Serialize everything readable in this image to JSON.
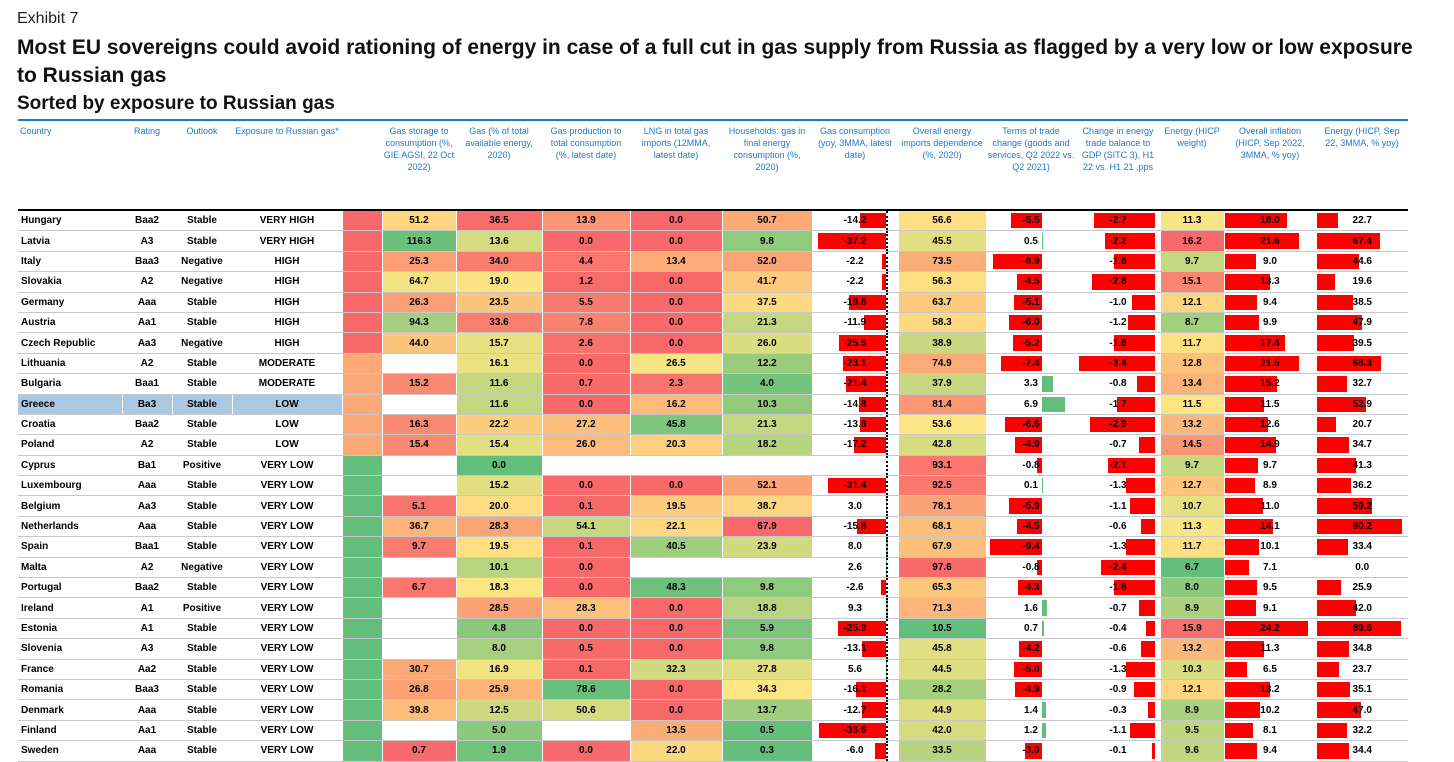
{
  "header": {
    "exhibit": "Exhibit 7",
    "title": "Most EU sovereigns could avoid rationing of energy in case of a full cut in gas supply from Russia as flagged by a very low or low exposure to Russian gas",
    "subtitle": "Sorted by exposure to Russian gas"
  },
  "columns": [
    "Country",
    "Rating",
    "Outlook",
    "Exposure to Russian gas*",
    "",
    "Gas storage to consumption (%, GIE AGSI, 22 Oct 2022)",
    "Gas (% of total available energy, 2020)",
    "Gas production to total consumption (%, latest date)",
    "LNG in total gas imports (12MMA, latest date)",
    "Households: gas in final energy consumption (%, 2020)",
    "Gas consumption (yoy, 3MMA, latest date)",
    "Overall energy imports dependence (%, 2020)",
    "Terms of trade change (goods and services, Q2 2022 vs. Q2 2021)",
    "Change in energy trade balance to GDP (SITC 3), H1 22 vs. H1 21 ,pps",
    "Energy (HICP weight)",
    "Overall inflation (HICP, Sep 2022, 3MMA, % yoy)",
    "Energy (HICP, Sep 22, 3MMA, % yoy)"
  ],
  "highlighted_country": "Greece",
  "colors": {
    "red": "#f8696b",
    "orange": "#fbaa77",
    "yellow": "#fee683",
    "lightgreen": "#b1d580",
    "green": "#63be7b",
    "bar_red": "#ff0000",
    "bar_green": "#63be7b",
    "header_blue": "#1f78c8"
  },
  "rows": [
    {
      "country": "Hungary",
      "rating": "Baa2",
      "outlook": "Stable",
      "exposure": "VERY HIGH",
      "storage": "51.2",
      "gas_share": "36.5",
      "production": "13.9",
      "lng": "0.0",
      "households": "50.7",
      "consumption": "-14.2",
      "imports_dep": "56.6",
      "tot": "-5.5",
      "energy_tb": "-2.7",
      "hicp_weight": "11.3",
      "inflation": "18.0",
      "energy_infl": "22.7"
    },
    {
      "country": "Latvia",
      "rating": "A3",
      "outlook": "Stable",
      "exposure": "VERY HIGH",
      "storage": "116.3",
      "gas_share": "13.6",
      "production": "0.0",
      "lng": "0.0",
      "households": "9.8",
      "consumption": "-37.2",
      "imports_dep": "45.5",
      "tot": "0.5",
      "energy_tb": "-2.2",
      "hicp_weight": "16.2",
      "inflation": "21.6",
      "energy_infl": "67.4"
    },
    {
      "country": "Italy",
      "rating": "Baa3",
      "outlook": "Negative",
      "exposure": "HIGH",
      "storage": "25.3",
      "gas_share": "34.0",
      "production": "4.4",
      "lng": "13.4",
      "households": "52.0",
      "consumption": "-2.2",
      "imports_dep": "73.5",
      "tot": "-8.9",
      "energy_tb": "-1.8",
      "hicp_weight": "9.7",
      "inflation": "9.0",
      "energy_infl": "44.6"
    },
    {
      "country": "Slovakia",
      "rating": "A2",
      "outlook": "Negative",
      "exposure": "HIGH",
      "storage": "64.7",
      "gas_share": "19.0",
      "production": "1.2",
      "lng": "0.0",
      "households": "41.7",
      "consumption": "-2.2",
      "imports_dep": "56.3",
      "tot": "-4.5",
      "energy_tb": "-2.8",
      "hicp_weight": "15.1",
      "inflation": "13.3",
      "energy_infl": "19.6"
    },
    {
      "country": "Germany",
      "rating": "Aaa",
      "outlook": "Stable",
      "exposure": "HIGH",
      "storage": "26.3",
      "gas_share": "23.5",
      "production": "5.5",
      "lng": "0.0",
      "households": "37.5",
      "consumption": "-19.8",
      "imports_dep": "63.7",
      "tot": "-5.1",
      "energy_tb": "-1.0",
      "hicp_weight": "12.1",
      "inflation": "9.4",
      "energy_infl": "38.5"
    },
    {
      "country": "Austria",
      "rating": "Aa1",
      "outlook": "Stable",
      "exposure": "HIGH",
      "storage": "94.3",
      "gas_share": "33.6",
      "production": "7.8",
      "lng": "0.0",
      "households": "21.3",
      "consumption": "-11.9",
      "imports_dep": "58.3",
      "tot": "-6.0",
      "energy_tb": "-1.2",
      "hicp_weight": "8.7",
      "inflation": "9.9",
      "energy_infl": "47.9"
    },
    {
      "country": "Czech Republic",
      "rating": "Aa3",
      "outlook": "Negative",
      "exposure": "HIGH",
      "storage": "44.0",
      "gas_share": "15.7",
      "production": "2.6",
      "lng": "0.0",
      "households": "26.0",
      "consumption": "-25.5",
      "imports_dep": "38.9",
      "tot": "-5.2",
      "energy_tb": "-1.8",
      "hicp_weight": "11.7",
      "inflation": "17.4",
      "energy_infl": "39.5"
    },
    {
      "country": "Lithuania",
      "rating": "A2",
      "outlook": "Stable",
      "exposure": "MODERATE",
      "storage": "",
      "gas_share": "16.1",
      "production": "0.0",
      "lng": "26.5",
      "households": "12.2",
      "consumption": "-23.1",
      "imports_dep": "74.9",
      "tot": "-7.4",
      "energy_tb": "-3.4",
      "hicp_weight": "12.8",
      "inflation": "21.5",
      "energy_infl": "68.3"
    },
    {
      "country": "Bulgaria",
      "rating": "Baa1",
      "outlook": "Stable",
      "exposure": "MODERATE",
      "storage": "15.2",
      "gas_share": "11.6",
      "production": "0.7",
      "lng": "2.3",
      "households": "4.0",
      "consumption": "-21.4",
      "imports_dep": "37.9",
      "tot": "3.3",
      "energy_tb": "-0.8",
      "hicp_weight": "13.4",
      "inflation": "15.2",
      "energy_infl": "32.7"
    },
    {
      "country": "Greece",
      "rating": "Ba3",
      "outlook": "Stable",
      "exposure": "LOW",
      "storage": "",
      "gas_share": "11.6",
      "production": "0.0",
      "lng": "16.2",
      "households": "10.3",
      "consumption": "-14.8",
      "imports_dep": "81.4",
      "tot": "6.9",
      "energy_tb": "-1.7",
      "hicp_weight": "11.5",
      "inflation": "11.5",
      "energy_infl": "52.9"
    },
    {
      "country": "Croatia",
      "rating": "Baa2",
      "outlook": "Stable",
      "exposure": "LOW",
      "storage": "16.3",
      "gas_share": "22.2",
      "production": "27.2",
      "lng": "45.8",
      "households": "21.3",
      "consumption": "-13.8",
      "imports_dep": "53.6",
      "tot": "-6.6",
      "energy_tb": "-2.9",
      "hicp_weight": "13.2",
      "inflation": "12.6",
      "energy_infl": "20.7"
    },
    {
      "country": "Poland",
      "rating": "A2",
      "outlook": "Stable",
      "exposure": "LOW",
      "storage": "15.4",
      "gas_share": "15.4",
      "production": "26.0",
      "lng": "20.3",
      "households": "18.2",
      "consumption": "-17.2",
      "imports_dep": "42.8",
      "tot": "-4.9",
      "energy_tb": "-0.7",
      "hicp_weight": "14.5",
      "inflation": "14.9",
      "energy_infl": "34.7"
    },
    {
      "country": "Cyprus",
      "rating": "Ba1",
      "outlook": "Positive",
      "exposure": "VERY LOW",
      "storage": "",
      "gas_share": "0.0",
      "production": "",
      "lng": "",
      "households": "",
      "consumption": "",
      "imports_dep": "93.1",
      "tot": "-0.8",
      "energy_tb": "-2.1",
      "hicp_weight": "9.7",
      "inflation": "9.7",
      "energy_infl": "41.3"
    },
    {
      "country": "Luxembourg",
      "rating": "Aaa",
      "outlook": "Stable",
      "exposure": "VERY LOW",
      "storage": "",
      "gas_share": "15.2",
      "production": "0.0",
      "lng": "0.0",
      "households": "52.1",
      "consumption": "-31.4",
      "imports_dep": "92.5",
      "tot": "0.1",
      "energy_tb": "-1.3",
      "hicp_weight": "12.7",
      "inflation": "8.9",
      "energy_infl": "36.2"
    },
    {
      "country": "Belgium",
      "rating": "Aa3",
      "outlook": "Stable",
      "exposure": "VERY LOW",
      "storage": "5.1",
      "gas_share": "20.0",
      "production": "0.1",
      "lng": "19.5",
      "households": "38.7",
      "consumption": "3.0",
      "imports_dep": "78.1",
      "tot": "-5.9",
      "energy_tb": "-1.1",
      "hicp_weight": "10.7",
      "inflation": "11.0",
      "energy_infl": "59.2"
    },
    {
      "country": "Netherlands",
      "rating": "Aaa",
      "outlook": "Stable",
      "exposure": "VERY LOW",
      "storage": "36.7",
      "gas_share": "28.3",
      "production": "54.1",
      "lng": "22.1",
      "households": "67.9",
      "consumption": "-15.8",
      "imports_dep": "68.1",
      "tot": "-4.5",
      "energy_tb": "-0.6",
      "hicp_weight": "11.3",
      "inflation": "14.1",
      "energy_infl": "90.2"
    },
    {
      "country": "Spain",
      "rating": "Baa1",
      "outlook": "Stable",
      "exposure": "VERY LOW",
      "storage": "9.7",
      "gas_share": "19.5",
      "production": "0.1",
      "lng": "40.5",
      "households": "23.9",
      "consumption": "8.0",
      "imports_dep": "67.9",
      "tot": "-9.4",
      "energy_tb": "-1.3",
      "hicp_weight": "11.7",
      "inflation": "10.1",
      "energy_infl": "33.4"
    },
    {
      "country": "Malta",
      "rating": "A2",
      "outlook": "Negative",
      "exposure": "VERY LOW",
      "storage": "",
      "gas_share": "10.1",
      "production": "0.0",
      "lng": "",
      "households": "",
      "consumption": "2.6",
      "imports_dep": "97.6",
      "tot": "-0.8",
      "energy_tb": "-2.4",
      "hicp_weight": "6.7",
      "inflation": "7.1",
      "energy_infl": "0.0"
    },
    {
      "country": "Portugal",
      "rating": "Baa2",
      "outlook": "Stable",
      "exposure": "VERY LOW",
      "storage": "6.7",
      "gas_share": "18.3",
      "production": "0.0",
      "lng": "48.3",
      "households": "9.8",
      "consumption": "-2.6",
      "imports_dep": "65.3",
      "tot": "-4.3",
      "energy_tb": "-1.8",
      "hicp_weight": "8.0",
      "inflation": "9.5",
      "energy_infl": "25.9"
    },
    {
      "country": "Ireland",
      "rating": "A1",
      "outlook": "Positive",
      "exposure": "VERY LOW",
      "storage": "",
      "gas_share": "28.5",
      "production": "28.3",
      "lng": "0.0",
      "households": "18.8",
      "consumption": "9.3",
      "imports_dep": "71.3",
      "tot": "1.6",
      "energy_tb": "-0.7",
      "hicp_weight": "8.9",
      "inflation": "9.1",
      "energy_infl": "42.0"
    },
    {
      "country": "Estonia",
      "rating": "A1",
      "outlook": "Stable",
      "exposure": "VERY LOW",
      "storage": "",
      "gas_share": "4.8",
      "production": "0.0",
      "lng": "0.0",
      "households": "5.9",
      "consumption": "-25.9",
      "imports_dep": "10.5",
      "tot": "0.7",
      "energy_tb": "-0.4",
      "hicp_weight": "15.9",
      "inflation": "24.2",
      "energy_infl": "89.6"
    },
    {
      "country": "Slovenia",
      "rating": "A3",
      "outlook": "Stable",
      "exposure": "VERY LOW",
      "storage": "",
      "gas_share": "8.0",
      "production": "0.5",
      "lng": "0.0",
      "households": "9.8",
      "consumption": "-13.1",
      "imports_dep": "45.8",
      "tot": "-4.2",
      "energy_tb": "-0.6",
      "hicp_weight": "13.2",
      "inflation": "11.3",
      "energy_infl": "34.8"
    },
    {
      "country": "France",
      "rating": "Aa2",
      "outlook": "Stable",
      "exposure": "VERY LOW",
      "storage": "30.7",
      "gas_share": "16.9",
      "production": "0.1",
      "lng": "32.3",
      "households": "27.8",
      "consumption": "5.6",
      "imports_dep": "44.5",
      "tot": "-5.0",
      "energy_tb": "-1.3",
      "hicp_weight": "10.3",
      "inflation": "6.5",
      "energy_infl": "23.7"
    },
    {
      "country": "Romania",
      "rating": "Baa3",
      "outlook": "Stable",
      "exposure": "VERY LOW",
      "storage": "26.8",
      "gas_share": "25.9",
      "production": "78.6",
      "lng": "0.0",
      "households": "34.3",
      "consumption": "-16.1",
      "imports_dep": "28.2",
      "tot": "-4.9",
      "energy_tb": "-0.9",
      "hicp_weight": "12.1",
      "inflation": "13.2",
      "energy_infl": "35.1"
    },
    {
      "country": "Denmark",
      "rating": "Aaa",
      "outlook": "Stable",
      "exposure": "VERY LOW",
      "storage": "39.8",
      "gas_share": "12.5",
      "production": "50.6",
      "lng": "0.0",
      "households": "13.7",
      "consumption": "-12.7",
      "imports_dep": "44.9",
      "tot": "1.4",
      "energy_tb": "-0.3",
      "hicp_weight": "8.9",
      "inflation": "10.2",
      "energy_infl": "47.0"
    },
    {
      "country": "Finland",
      "rating": "Aa1",
      "outlook": "Stable",
      "exposure": "VERY LOW",
      "storage": "",
      "gas_share": "5.0",
      "production": "",
      "lng": "13.5",
      "households": "0.5",
      "consumption": "-36.6",
      "imports_dep": "42.0",
      "tot": "1.2",
      "energy_tb": "-1.1",
      "hicp_weight": "9.5",
      "inflation": "8.1",
      "energy_infl": "32.2"
    },
    {
      "country": "Sweden",
      "rating": "Aaa",
      "outlook": "Stable",
      "exposure": "VERY LOW",
      "storage": "0.7",
      "gas_share": "1.9",
      "production": "0.0",
      "lng": "22.0",
      "households": "0.3",
      "consumption": "-6.0",
      "imports_dep": "33.5",
      "tot": "-3.0",
      "energy_tb": "-0.1",
      "hicp_weight": "9.6",
      "inflation": "9.4",
      "energy_infl": "34.4"
    }
  ]
}
